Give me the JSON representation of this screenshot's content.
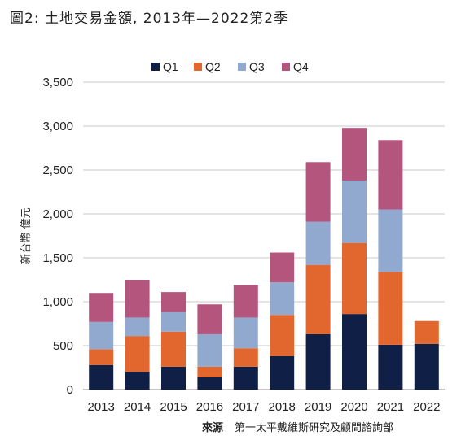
{
  "title": "圖2: 土地交易金額, 2013年—2022第2季",
  "source_label": "來源",
  "source_text": "第一太平戴維斯研究及顧問諮詢部",
  "chart_data": {
    "type": "bar",
    "stacked": true,
    "categories": [
      "2013",
      "2014",
      "2015",
      "2016",
      "2017",
      "2018",
      "2019",
      "2020",
      "2021",
      "2022"
    ],
    "series": [
      {
        "name": "Q1",
        "color": "#0f1f45",
        "values": [
          280,
          200,
          260,
          140,
          260,
          380,
          630,
          860,
          510,
          520
        ]
      },
      {
        "name": "Q2",
        "color": "#e2672e",
        "values": [
          180,
          410,
          400,
          120,
          210,
          470,
          790,
          810,
          830,
          260
        ]
      },
      {
        "name": "Q3",
        "color": "#92a9cf",
        "values": [
          310,
          210,
          220,
          370,
          350,
          370,
          490,
          710,
          710,
          0
        ]
      },
      {
        "name": "Q4",
        "color": "#b4557d",
        "values": [
          330,
          430,
          230,
          340,
          370,
          340,
          680,
          600,
          790,
          0
        ]
      }
    ],
    "ylabel": "新台幣 億元",
    "ylim": [
      0,
      3500
    ],
    "yticks": [
      0,
      500,
      1000,
      1500,
      2000,
      2500,
      3000,
      3500
    ],
    "ytick_labels": [
      "0",
      "500",
      "1,000",
      "1,500",
      "2,000",
      "2,500",
      "3,000",
      "3,500"
    ],
    "grid": true,
    "legend": "top-center"
  }
}
